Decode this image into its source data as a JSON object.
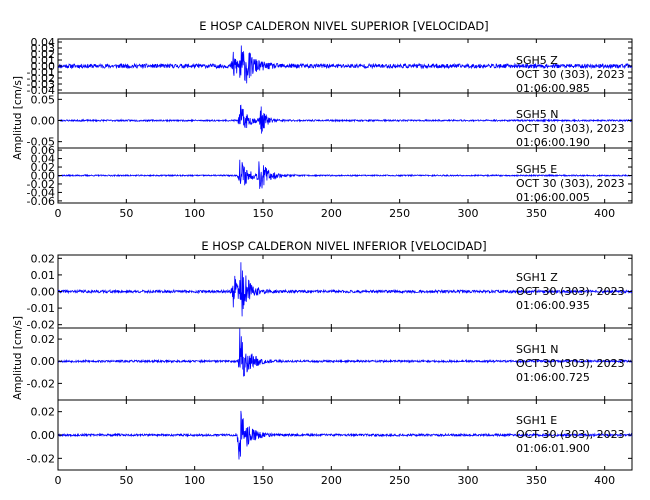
{
  "chart_data": [
    {
      "type": "line",
      "title": "E HOSP CALDERON NIVEL SUPERIOR [VELOCIDAD]",
      "ylabel": "Amplitud [cm/s]",
      "xlim": [
        0,
        420
      ],
      "x_ticks": [
        0,
        50,
        100,
        150,
        200,
        250,
        300,
        350,
        400
      ],
      "x_tick_labels": [
        "0",
        "50",
        "100",
        "150",
        "200",
        "250",
        "300",
        "350",
        "400"
      ],
      "color": "#0000ff",
      "series": [
        {
          "name": "SGH5 Z",
          "station": "SGH5",
          "component": "Z",
          "date": "OCT 30 (303), 2023",
          "time": "01:06:00.985",
          "ylim": [
            -0.045,
            0.045
          ],
          "y_ticks": [
            -0.04,
            -0.03,
            -0.02,
            -0.01,
            0.0,
            0.01,
            0.02,
            0.03,
            0.04
          ],
          "y_tick_labels": [
            "-0.04",
            "-0.03",
            "-0.02",
            "-0.01",
            "0.00",
            "0.01",
            "0.02",
            "0.03",
            "0.04"
          ],
          "noise": 0.0035,
          "events": [
            [
              128,
              0.03,
              3.5
            ],
            [
              133,
              0.038,
              4
            ],
            [
              137,
              0.018,
              8
            ]
          ],
          "seed": 11
        },
        {
          "name": "SGH5 N",
          "station": "SGH5",
          "component": "N",
          "date": "OCT 30 (303), 2023",
          "time": "01:06:00.190",
          "ylim": [
            -0.065,
            0.065
          ],
          "y_ticks": [
            -0.05,
            0.0,
            0.05
          ],
          "y_tick_labels": [
            "-0.05",
            "0.00",
            "0.05"
          ],
          "noise": 0.0018,
          "events": [
            [
              133,
              0.045,
              5
            ],
            [
              148,
              0.035,
              4
            ]
          ],
          "seed": 23
        },
        {
          "name": "SGH5 E",
          "station": "SGH5",
          "component": "E",
          "date": "OCT 30 (303), 2023",
          "time": "01:06:00.005",
          "ylim": [
            -0.065,
            0.065
          ],
          "y_ticks": [
            -0.06,
            -0.04,
            -0.02,
            0.0,
            0.02,
            0.04,
            0.06
          ],
          "y_tick_labels": [
            "-0.06",
            "-0.04",
            "-0.02",
            "0.00",
            "0.02",
            "0.04",
            "0.06"
          ],
          "noise": 0.0015,
          "events": [
            [
              133,
              0.05,
              5
            ],
            [
              147,
              0.04,
              6
            ]
          ],
          "seed": 37
        }
      ]
    },
    {
      "type": "line",
      "title": "E HOSP CALDERON NIVEL INFERIOR [VELOCIDAD]",
      "ylabel": "Amplitud [cm/s]",
      "xlim": [
        0,
        420
      ],
      "x_ticks": [
        0,
        50,
        100,
        150,
        200,
        250,
        300,
        350,
        400
      ],
      "x_tick_labels": [
        "0",
        "50",
        "100",
        "150",
        "200",
        "250",
        "300",
        "350",
        "400"
      ],
      "color": "#0000ff",
      "series": [
        {
          "name": "SGH1 Z",
          "station": "SGH1",
          "component": "Z",
          "date": "OCT 30 (303), 2023",
          "time": "01:06:00.935",
          "ylim": [
            -0.022,
            0.022
          ],
          "y_ticks": [
            -0.02,
            -0.01,
            0.0,
            0.01,
            0.02
          ],
          "y_tick_labels": [
            "-0.02",
            "-0.01",
            "0.00",
            "0.01",
            "0.02"
          ],
          "noise": 0.0008,
          "events": [
            [
              128,
              0.013,
              4
            ],
            [
              133,
              0.02,
              5
            ]
          ],
          "seed": 41
        },
        {
          "name": "SGH1 N",
          "station": "SGH1",
          "component": "N",
          "date": "OCT 30 (303), 2023",
          "time": "01:06:00.725",
          "ylim": [
            -0.035,
            0.03
          ],
          "y_ticks": [
            -0.02,
            0.0,
            0.02
          ],
          "y_tick_labels": [
            "-0.02",
            "0.00",
            "0.02"
          ],
          "noise": 0.0009,
          "events": [
            [
              133,
              0.03,
              6
            ]
          ],
          "seed": 53
        },
        {
          "name": "SGH1 E",
          "station": "SGH1",
          "component": "E",
          "date": "OCT 30 (303), 2023",
          "time": "01:06:01.900",
          "ylim": [
            -0.03,
            0.03
          ],
          "y_ticks": [
            -0.02,
            0.0,
            0.02
          ],
          "y_tick_labels": [
            "-0.02",
            "0.00",
            "0.02"
          ],
          "noise": 0.0009,
          "events": [
            [
              132,
              0.027,
              6
            ]
          ],
          "seed": 67
        }
      ]
    }
  ]
}
